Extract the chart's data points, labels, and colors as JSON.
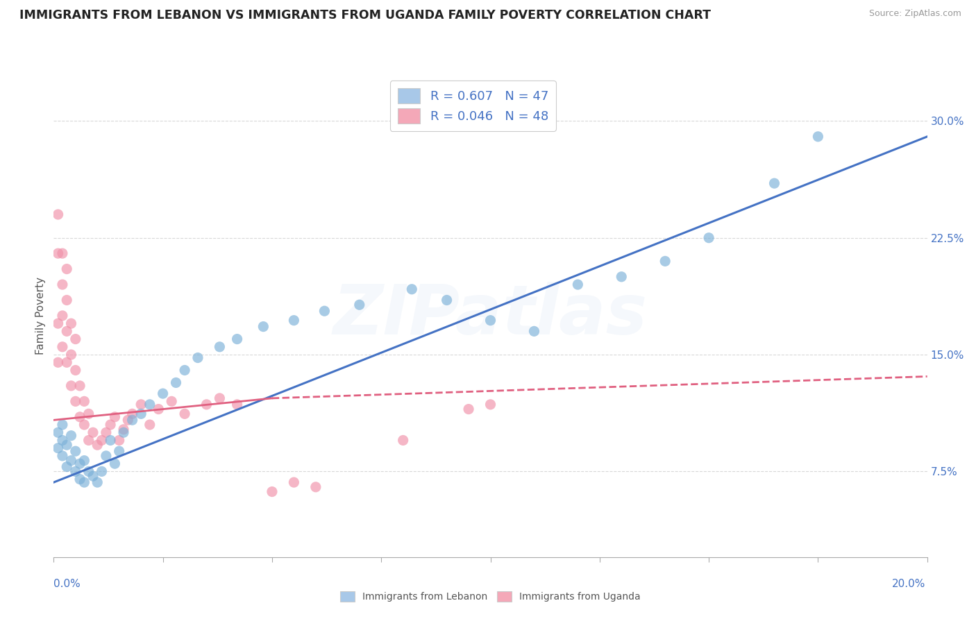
{
  "title": "IMMIGRANTS FROM LEBANON VS IMMIGRANTS FROM UGANDA FAMILY POVERTY CORRELATION CHART",
  "source": "Source: ZipAtlas.com",
  "ylabel": "Family Poverty",
  "xmin": 0.0,
  "xmax": 0.2,
  "ymin": 0.02,
  "ymax": 0.33,
  "yticks": [
    0.075,
    0.15,
    0.225,
    0.3
  ],
  "ytick_labels": [
    "7.5%",
    "15.0%",
    "22.5%",
    "30.0%"
  ],
  "xticks": [
    0.0,
    0.025,
    0.05,
    0.075,
    0.1,
    0.125,
    0.15,
    0.175,
    0.2
  ],
  "legend_items": [
    {
      "label": "R = 0.607   N = 47",
      "color": "#a8c8e8"
    },
    {
      "label": "R = 0.046   N = 48",
      "color": "#f4a8b8"
    }
  ],
  "bottom_legend": [
    {
      "label": "Immigrants from Lebanon",
      "color": "#a8c8e8"
    },
    {
      "label": "Immigrants from Uganda",
      "color": "#f4a8b8"
    }
  ],
  "lebanon_scatter": {
    "x": [
      0.001,
      0.001,
      0.002,
      0.002,
      0.002,
      0.003,
      0.003,
      0.004,
      0.004,
      0.005,
      0.005,
      0.006,
      0.006,
      0.007,
      0.007,
      0.008,
      0.009,
      0.01,
      0.011,
      0.012,
      0.013,
      0.014,
      0.015,
      0.016,
      0.018,
      0.02,
      0.022,
      0.025,
      0.028,
      0.03,
      0.033,
      0.038,
      0.042,
      0.048,
      0.055,
      0.062,
      0.07,
      0.082,
      0.09,
      0.1,
      0.11,
      0.12,
      0.13,
      0.14,
      0.15,
      0.165,
      0.175
    ],
    "y": [
      0.09,
      0.1,
      0.085,
      0.095,
      0.105,
      0.078,
      0.092,
      0.082,
      0.098,
      0.075,
      0.088,
      0.07,
      0.08,
      0.068,
      0.082,
      0.075,
      0.072,
      0.068,
      0.075,
      0.085,
      0.095,
      0.08,
      0.088,
      0.1,
      0.108,
      0.112,
      0.118,
      0.125,
      0.132,
      0.14,
      0.148,
      0.155,
      0.16,
      0.168,
      0.172,
      0.178,
      0.182,
      0.192,
      0.185,
      0.172,
      0.165,
      0.195,
      0.2,
      0.21,
      0.225,
      0.26,
      0.29
    ]
  },
  "uganda_scatter": {
    "x": [
      0.001,
      0.001,
      0.001,
      0.001,
      0.002,
      0.002,
      0.002,
      0.002,
      0.003,
      0.003,
      0.003,
      0.003,
      0.004,
      0.004,
      0.004,
      0.005,
      0.005,
      0.005,
      0.006,
      0.006,
      0.007,
      0.007,
      0.008,
      0.008,
      0.009,
      0.01,
      0.011,
      0.012,
      0.013,
      0.014,
      0.015,
      0.016,
      0.017,
      0.018,
      0.02,
      0.022,
      0.024,
      0.027,
      0.03,
      0.035,
      0.038,
      0.042,
      0.05,
      0.055,
      0.06,
      0.08,
      0.095,
      0.1
    ],
    "y": [
      0.145,
      0.17,
      0.215,
      0.24,
      0.155,
      0.175,
      0.195,
      0.215,
      0.145,
      0.165,
      0.185,
      0.205,
      0.13,
      0.15,
      0.17,
      0.12,
      0.14,
      0.16,
      0.11,
      0.13,
      0.105,
      0.12,
      0.095,
      0.112,
      0.1,
      0.092,
      0.095,
      0.1,
      0.105,
      0.11,
      0.095,
      0.102,
      0.108,
      0.112,
      0.118,
      0.105,
      0.115,
      0.12,
      0.112,
      0.118,
      0.122,
      0.118,
      0.062,
      0.068,
      0.065,
      0.095,
      0.115,
      0.118
    ]
  },
  "lebanon_trend": {
    "x": [
      0.0,
      0.2
    ],
    "y": [
      0.068,
      0.29
    ],
    "color": "#4472c4",
    "linestyle": "solid",
    "linewidth": 2.2
  },
  "uganda_trend_solid": {
    "x": [
      0.0,
      0.05
    ],
    "y": [
      0.108,
      0.122
    ],
    "color": "#e06080",
    "linestyle": "solid",
    "linewidth": 2.0
  },
  "uganda_trend_dashed": {
    "x": [
      0.05,
      0.2
    ],
    "y": [
      0.122,
      0.136
    ],
    "color": "#e06080",
    "linestyle": "dashed",
    "linewidth": 2.0
  },
  "scatter_color_lebanon": "#7ab0d8",
  "scatter_color_uganda": "#f090a8",
  "scatter_alpha": 0.65,
  "scatter_size": 120,
  "title_fontsize": 12.5,
  "axis_label_fontsize": 11,
  "tick_fontsize": 11,
  "legend_fontsize": 13,
  "watermark_text": "ZIPatlas",
  "watermark_alpha": 0.12,
  "background_color": "#ffffff",
  "grid_color": "#d8d8d8"
}
